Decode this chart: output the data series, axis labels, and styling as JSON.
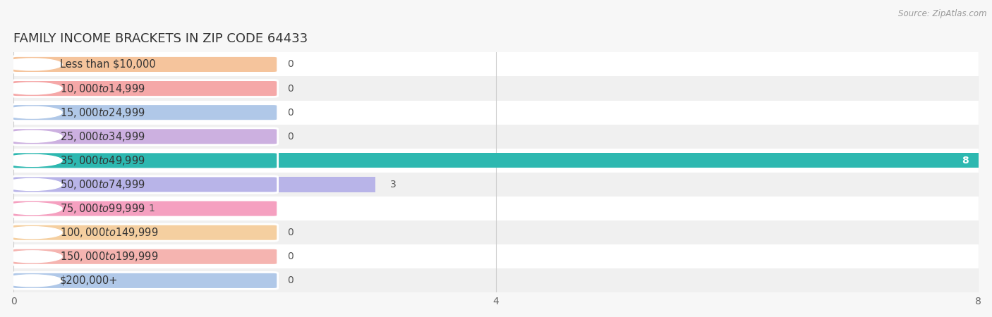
{
  "title": "FAMILY INCOME BRACKETS IN ZIP CODE 64433",
  "source": "Source: ZipAtlas.com",
  "categories": [
    "Less than $10,000",
    "$10,000 to $14,999",
    "$15,000 to $24,999",
    "$25,000 to $34,999",
    "$35,000 to $49,999",
    "$50,000 to $74,999",
    "$75,000 to $99,999",
    "$100,000 to $149,999",
    "$150,000 to $199,999",
    "$200,000+"
  ],
  "values": [
    0,
    0,
    0,
    0,
    8,
    3,
    1,
    0,
    0,
    0
  ],
  "bar_colors": [
    "#f5c49c",
    "#f5a8a8",
    "#b0c8e8",
    "#ccb0e0",
    "#2db8b0",
    "#b8b4e8",
    "#f5a0c0",
    "#f5cfa0",
    "#f5b4b0",
    "#b0c8e8"
  ],
  "xlim": [
    0,
    8
  ],
  "xticks": [
    0,
    4,
    8
  ],
  "bg_color": "#f7f7f7",
  "row_colors": [
    "#ffffff",
    "#f0f0f0"
  ],
  "title_fontsize": 13,
  "label_fontsize": 10.5,
  "value_fontsize": 10
}
